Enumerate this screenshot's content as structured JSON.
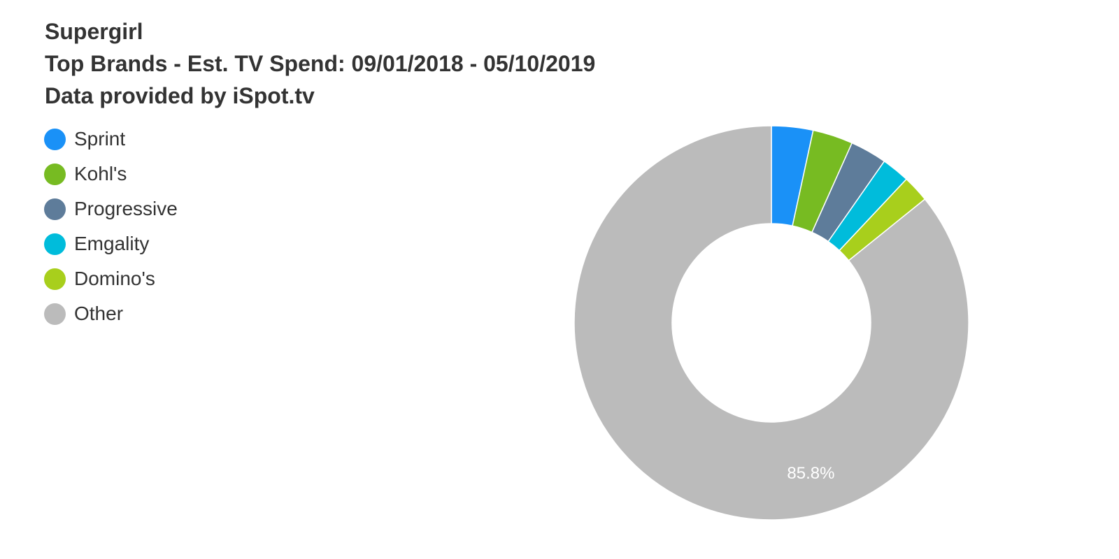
{
  "chart_data": {
    "type": "pie",
    "variant": "donut",
    "title_lines": [
      "Supergirl",
      "Top Brands - Est. TV Spend: 09/01/2018 - 05/10/2019",
      "Data provided by iSpot.tv"
    ],
    "categories": [
      "Sprint",
      "Kohl's",
      "Progressive",
      "Emgality",
      "Domino's",
      "Other"
    ],
    "values": [
      3.4,
      3.3,
      3.0,
      2.3,
      2.2,
      85.8
    ],
    "colors": [
      "#1a91f7",
      "#77bb22",
      "#5e7c9a",
      "#00bcdb",
      "#a8cf1c",
      "#bbbbbb"
    ],
    "data_labels": [
      {
        "category": "Other",
        "text": "85.8%"
      }
    ],
    "legend_position": "top-left"
  }
}
